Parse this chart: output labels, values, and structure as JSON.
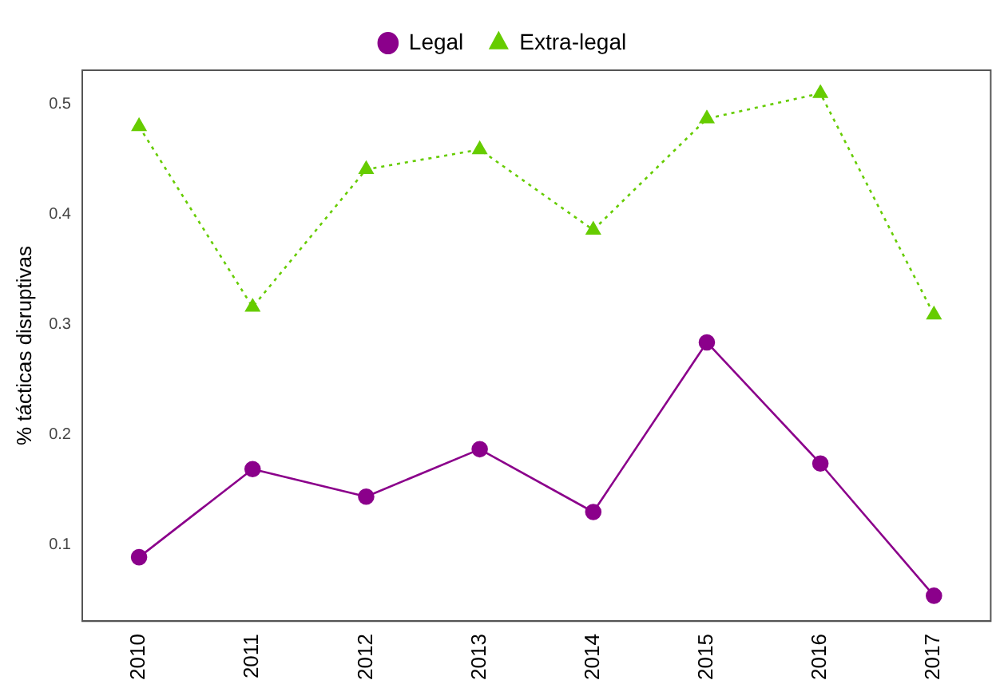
{
  "chart_data": {
    "type": "line",
    "ylabel": "% tácticas disruptivas",
    "categories": [
      "2010",
      "2011",
      "2012",
      "2013",
      "2014",
      "2015",
      "2016",
      "2017"
    ],
    "series": [
      {
        "name": "Legal",
        "color": "#8b008b",
        "marker": "circle",
        "line_style": "solid",
        "values": [
          0.089,
          0.169,
          0.144,
          0.187,
          0.13,
          0.284,
          0.174,
          0.054
        ]
      },
      {
        "name": "Extra-legal",
        "color": "#66cc00",
        "marker": "triangle",
        "line_style": "dotted",
        "values": [
          0.48,
          0.316,
          0.441,
          0.459,
          0.386,
          0.487,
          0.51,
          0.309
        ]
      }
    ],
    "ylim": [
      0.031,
      0.531
    ],
    "yticks": [
      0.1,
      0.2,
      0.3,
      0.4,
      0.5
    ],
    "grid": false,
    "legend": "top"
  }
}
